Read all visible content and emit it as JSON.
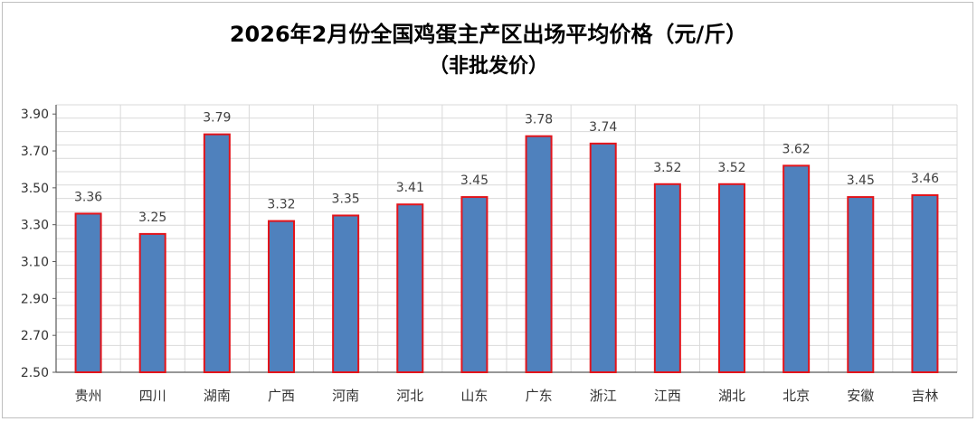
{
  "chart_data": {
    "type": "bar",
    "title": "2026年2月份全国鸡蛋主产区出场平均价格（元/斤）",
    "subtitle": "（非批发价）",
    "categories": [
      "贵州",
      "四川",
      "湖南",
      "广西",
      "河南",
      "河北",
      "山东",
      "广东",
      "浙江",
      "江西",
      "湖北",
      "北京",
      "安徽",
      "吉林"
    ],
    "values": [
      3.36,
      3.25,
      3.79,
      3.32,
      3.35,
      3.41,
      3.45,
      3.78,
      3.74,
      3.52,
      3.52,
      3.62,
      3.45,
      3.46
    ],
    "value_labels": [
      "3.36",
      "3.25",
      "3.79",
      "3.32",
      "3.35",
      "3.41",
      "3.45",
      "3.78",
      "3.74",
      "3.52",
      "3.52",
      "3.62",
      "3.45",
      "3.46"
    ],
    "ylim": [
      2.5,
      3.95
    ],
    "yticks": [
      2.5,
      2.7,
      2.9,
      3.1,
      3.3,
      3.5,
      3.7,
      3.9
    ],
    "ytick_labels": [
      "2.50",
      "2.70",
      "2.90",
      "3.10",
      "3.30",
      "3.50",
      "3.70",
      "3.90"
    ],
    "grid": true,
    "legend": "none",
    "colors": {
      "bar_fill": "#4f81bd",
      "bar_border": "#e3141b",
      "grid": "#d9d9d9",
      "axis": "#595959"
    }
  }
}
